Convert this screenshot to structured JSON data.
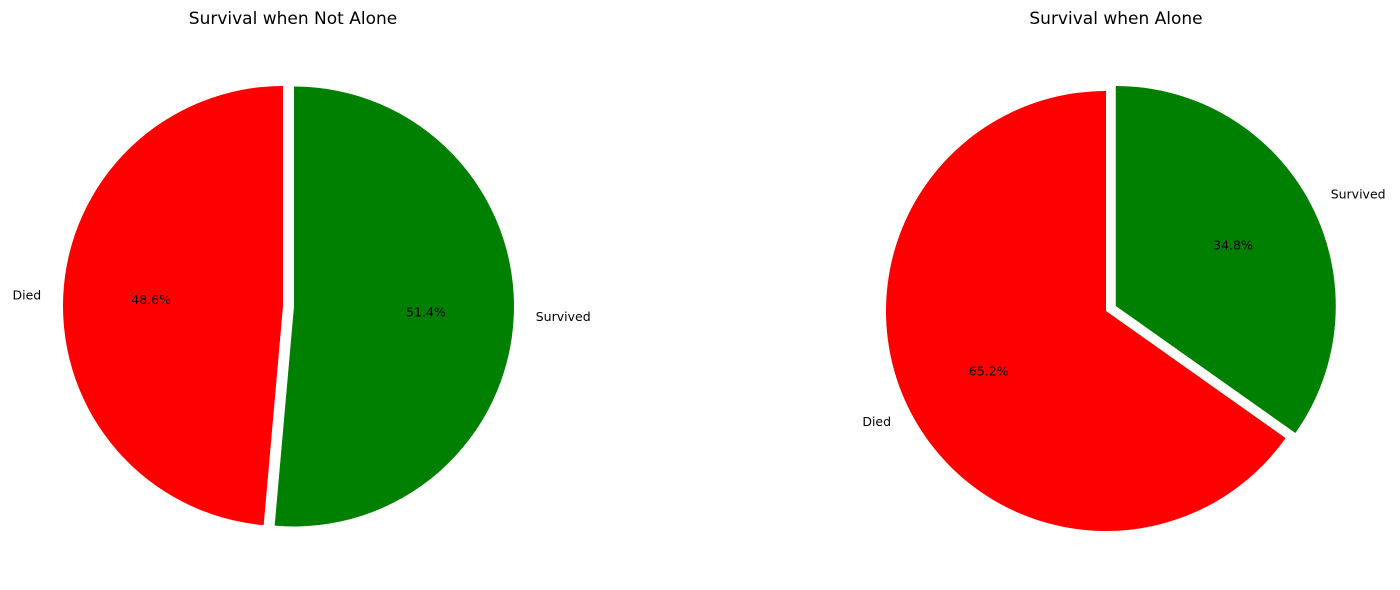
{
  "chart_data": [
    {
      "type": "pie",
      "title": "Survival when Not Alone",
      "categories": [
        "Died",
        "Survived"
      ],
      "values": [
        48.6,
        51.4
      ],
      "value_labels": [
        "48.6%",
        "51.4%"
      ],
      "colors": [
        "#ff0000",
        "#008000"
      ],
      "start_angle_deg": 90,
      "explode": [
        0,
        0.05
      ]
    },
    {
      "type": "pie",
      "title": "Survival when Alone",
      "categories": [
        "Died",
        "Survived"
      ],
      "values": [
        65.2,
        34.8
      ],
      "value_labels": [
        "65.2%",
        "34.8%"
      ],
      "colors": [
        "#ff0000",
        "#008000"
      ],
      "start_angle_deg": 90,
      "explode": [
        0,
        0.05
      ]
    }
  ]
}
